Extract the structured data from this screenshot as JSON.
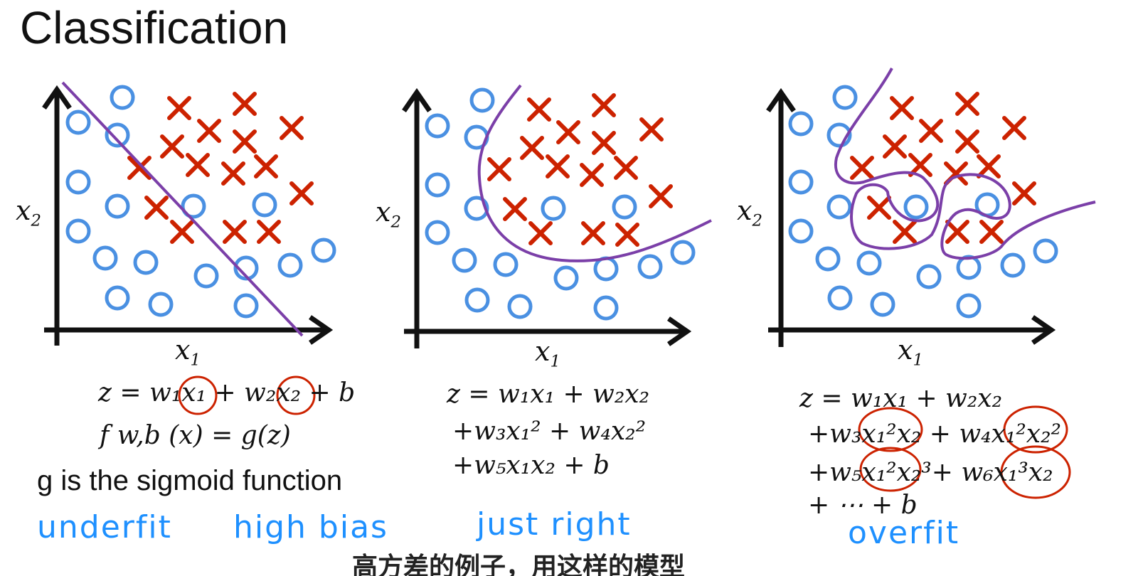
{
  "title": "Classification",
  "axes": {
    "x_label": "x",
    "x_sub": "1",
    "y_label": "x",
    "y_sub": "2"
  },
  "colors": {
    "circle": "#4a90e2",
    "cross": "#cc2200",
    "boundary": "#7b3fa8",
    "highlight": "#cc2200",
    "label": "#1e90ff"
  },
  "panels": [
    {
      "id": "linear",
      "equation_lines": [
        "z = w₁x₁ + w₂x₂ + b",
        "f w,b (x) = g(z)"
      ],
      "note": "g is the sigmoid function",
      "labels": [
        "underfit",
        "high bias"
      ]
    },
    {
      "id": "quadratic",
      "equation_lines": [
        "z = w₁x₁ + w₂x₂",
        "+w₃x₁² + w₄x₂²",
        "+w₅x₁x₂ + b"
      ],
      "labels": [
        "just right"
      ]
    },
    {
      "id": "high-order",
      "equation_lines": [
        "z = w₁x₁ + w₂x₂",
        "+w₃x₁²x₂ + w₄x₁²x₂²",
        "+w₅x₁²x₂³+ w₆x₁³x₂",
        "+ ⋯ + b"
      ],
      "labels": [
        "overfit"
      ]
    }
  ],
  "subtitle": "高方差的例子，用这样的模型"
}
